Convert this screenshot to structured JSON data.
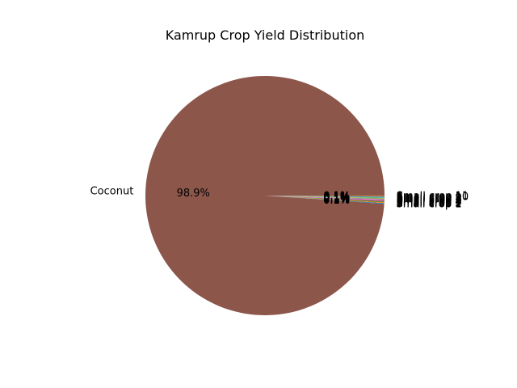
{
  "chart_data": {
    "type": "pie",
    "title": "Kamrup Crop Yield Distribution",
    "autopct_format": "0.1f",
    "start_angle_deg": 0,
    "slices": [
      {
        "label": "Coconut",
        "value": 98.9,
        "percent_label": "98.9%",
        "color": "#8c564b"
      },
      {
        "label": "Small crop 1",
        "value": 0.1,
        "percent_label": "0.1%",
        "color": "#1f77b4"
      },
      {
        "label": "Small crop 2",
        "value": 0.1,
        "percent_label": "0.1%",
        "color": "#ff7f0e"
      },
      {
        "label": "Small crop 3",
        "value": 0.1,
        "percent_label": "0.1%",
        "color": "#2ca02c"
      },
      {
        "label": "Small crop 4",
        "value": 0.1,
        "percent_label": "0.1%",
        "color": "#d62728"
      },
      {
        "label": "Small crop 5",
        "value": 0.1,
        "percent_label": "0.1%",
        "color": "#9467bd"
      },
      {
        "label": "Small crop 6",
        "value": 0.1,
        "percent_label": "0.1%",
        "color": "#e377c2"
      },
      {
        "label": "Small crop 7",
        "value": 0.1,
        "percent_label": "0.1%",
        "color": "#7f7f7f"
      },
      {
        "label": "Small crop 8",
        "value": 0.1,
        "percent_label": "0.1%",
        "color": "#bcbd22"
      },
      {
        "label": "Small crop 9",
        "value": 0.1,
        "percent_label": "0.1%",
        "color": "#17becf"
      },
      {
        "label": "Small crop 10",
        "value": 0.1,
        "percent_label": "0.1%",
        "color": "#1f77b4"
      },
      {
        "label": "Small crop 11",
        "value": 0.1,
        "percent_label": "0.1%",
        "color": "#ff7f0e"
      }
    ],
    "colors": {
      "background": "#ffffff"
    }
  }
}
